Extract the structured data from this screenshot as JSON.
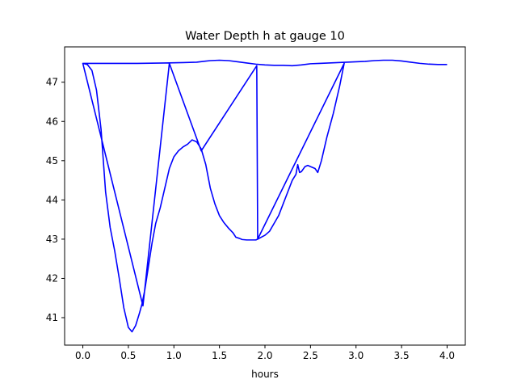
{
  "chart_data": {
    "type": "line",
    "title": "Water Depth h at gauge 10",
    "xlabel": "hours",
    "ylabel": "",
    "xlim": [
      -0.2,
      4.2
    ],
    "ylim": [
      40.3,
      47.9
    ],
    "xticks": [
      0.0,
      0.5,
      1.0,
      1.5,
      2.0,
      2.5,
      3.0,
      3.5,
      4.0
    ],
    "xtick_labels": [
      "0.0",
      "0.5",
      "1.0",
      "1.5",
      "2.0",
      "2.5",
      "3.0",
      "3.5",
      "4.0"
    ],
    "yticks": [
      41,
      42,
      43,
      44,
      45,
      46,
      47
    ],
    "ytick_labels": [
      "41",
      "42",
      "43",
      "44",
      "45",
      "46",
      "47"
    ],
    "grid": false,
    "line_color": "#0000ff",
    "series": [
      {
        "name": "",
        "points": [
          [
            0.0,
            47.48
          ],
          [
            0.05,
            47.45
          ],
          [
            0.1,
            47.3
          ],
          [
            0.15,
            46.8
          ],
          [
            0.2,
            45.8
          ],
          [
            0.25,
            44.2
          ],
          [
            0.3,
            43.3
          ],
          [
            0.35,
            42.7
          ],
          [
            0.4,
            42.0
          ],
          [
            0.45,
            41.25
          ],
          [
            0.5,
            40.75
          ],
          [
            0.54,
            40.64
          ],
          [
            0.58,
            40.8
          ],
          [
            0.62,
            41.1
          ],
          [
            0.65,
            41.35
          ],
          [
            0.68,
            41.7
          ],
          [
            0.72,
            42.3
          ],
          [
            0.76,
            42.9
          ],
          [
            0.8,
            43.4
          ],
          [
            0.85,
            43.8
          ],
          [
            0.9,
            44.3
          ],
          [
            0.95,
            44.8
          ],
          [
            1.0,
            45.1
          ],
          [
            1.05,
            45.25
          ],
          [
            1.1,
            45.35
          ],
          [
            1.15,
            45.42
          ],
          [
            1.2,
            45.53
          ],
          [
            1.25,
            45.48
          ],
          [
            1.3,
            45.3
          ],
          [
            1.35,
            44.9
          ],
          [
            1.4,
            44.3
          ],
          [
            1.45,
            43.9
          ],
          [
            1.5,
            43.6
          ],
          [
            1.55,
            43.42
          ],
          [
            1.6,
            43.28
          ],
          [
            1.65,
            43.16
          ],
          [
            1.68,
            43.05
          ],
          [
            1.72,
            43.02
          ],
          [
            1.75,
            42.99
          ],
          [
            1.8,
            42.98
          ],
          [
            1.85,
            42.98
          ],
          [
            1.9,
            42.98
          ],
          [
            1.92,
            43.0
          ],
          [
            1.96,
            43.05
          ],
          [
            2.0,
            43.1
          ],
          [
            2.05,
            43.2
          ],
          [
            2.1,
            43.4
          ],
          [
            2.15,
            43.6
          ],
          [
            2.2,
            43.9
          ],
          [
            2.25,
            44.2
          ],
          [
            2.3,
            44.5
          ],
          [
            2.34,
            44.65
          ],
          [
            2.36,
            44.9
          ],
          [
            2.38,
            44.7
          ],
          [
            2.4,
            44.72
          ],
          [
            2.44,
            44.85
          ],
          [
            2.47,
            44.88
          ],
          [
            2.5,
            44.85
          ],
          [
            2.55,
            44.8
          ],
          [
            2.58,
            44.7
          ],
          [
            2.62,
            45.0
          ],
          [
            2.68,
            45.6
          ],
          [
            2.75,
            46.2
          ],
          [
            2.82,
            46.9
          ],
          [
            2.87,
            47.48
          ],
          [
            1.92,
            43.0
          ],
          [
            1.91,
            47.42
          ],
          [
            1.3,
            45.25
          ],
          [
            0.95,
            47.48
          ],
          [
            0.66,
            41.3
          ],
          [
            0.0,
            47.48
          ],
          [
            0.3,
            47.48
          ],
          [
            0.6,
            47.48
          ],
          [
            0.9,
            47.49
          ],
          [
            1.1,
            47.5
          ],
          [
            1.25,
            47.51
          ],
          [
            1.4,
            47.55
          ],
          [
            1.5,
            47.56
          ],
          [
            1.6,
            47.55
          ],
          [
            1.7,
            47.52
          ],
          [
            1.8,
            47.49
          ],
          [
            1.9,
            47.46
          ],
          [
            2.0,
            47.44
          ],
          [
            2.1,
            47.43
          ],
          [
            2.2,
            47.43
          ],
          [
            2.3,
            47.42
          ],
          [
            2.4,
            47.44
          ],
          [
            2.5,
            47.47
          ],
          [
            2.6,
            47.48
          ],
          [
            2.7,
            47.49
          ],
          [
            2.8,
            47.5
          ],
          [
            2.9,
            47.51
          ],
          [
            3.0,
            47.52
          ],
          [
            3.1,
            47.53
          ],
          [
            3.2,
            47.55
          ],
          [
            3.3,
            47.56
          ],
          [
            3.4,
            47.56
          ],
          [
            3.5,
            47.54
          ],
          [
            3.6,
            47.51
          ],
          [
            3.7,
            47.48
          ],
          [
            3.8,
            47.46
          ],
          [
            3.9,
            47.45
          ],
          [
            4.0,
            47.45
          ]
        ]
      }
    ]
  }
}
